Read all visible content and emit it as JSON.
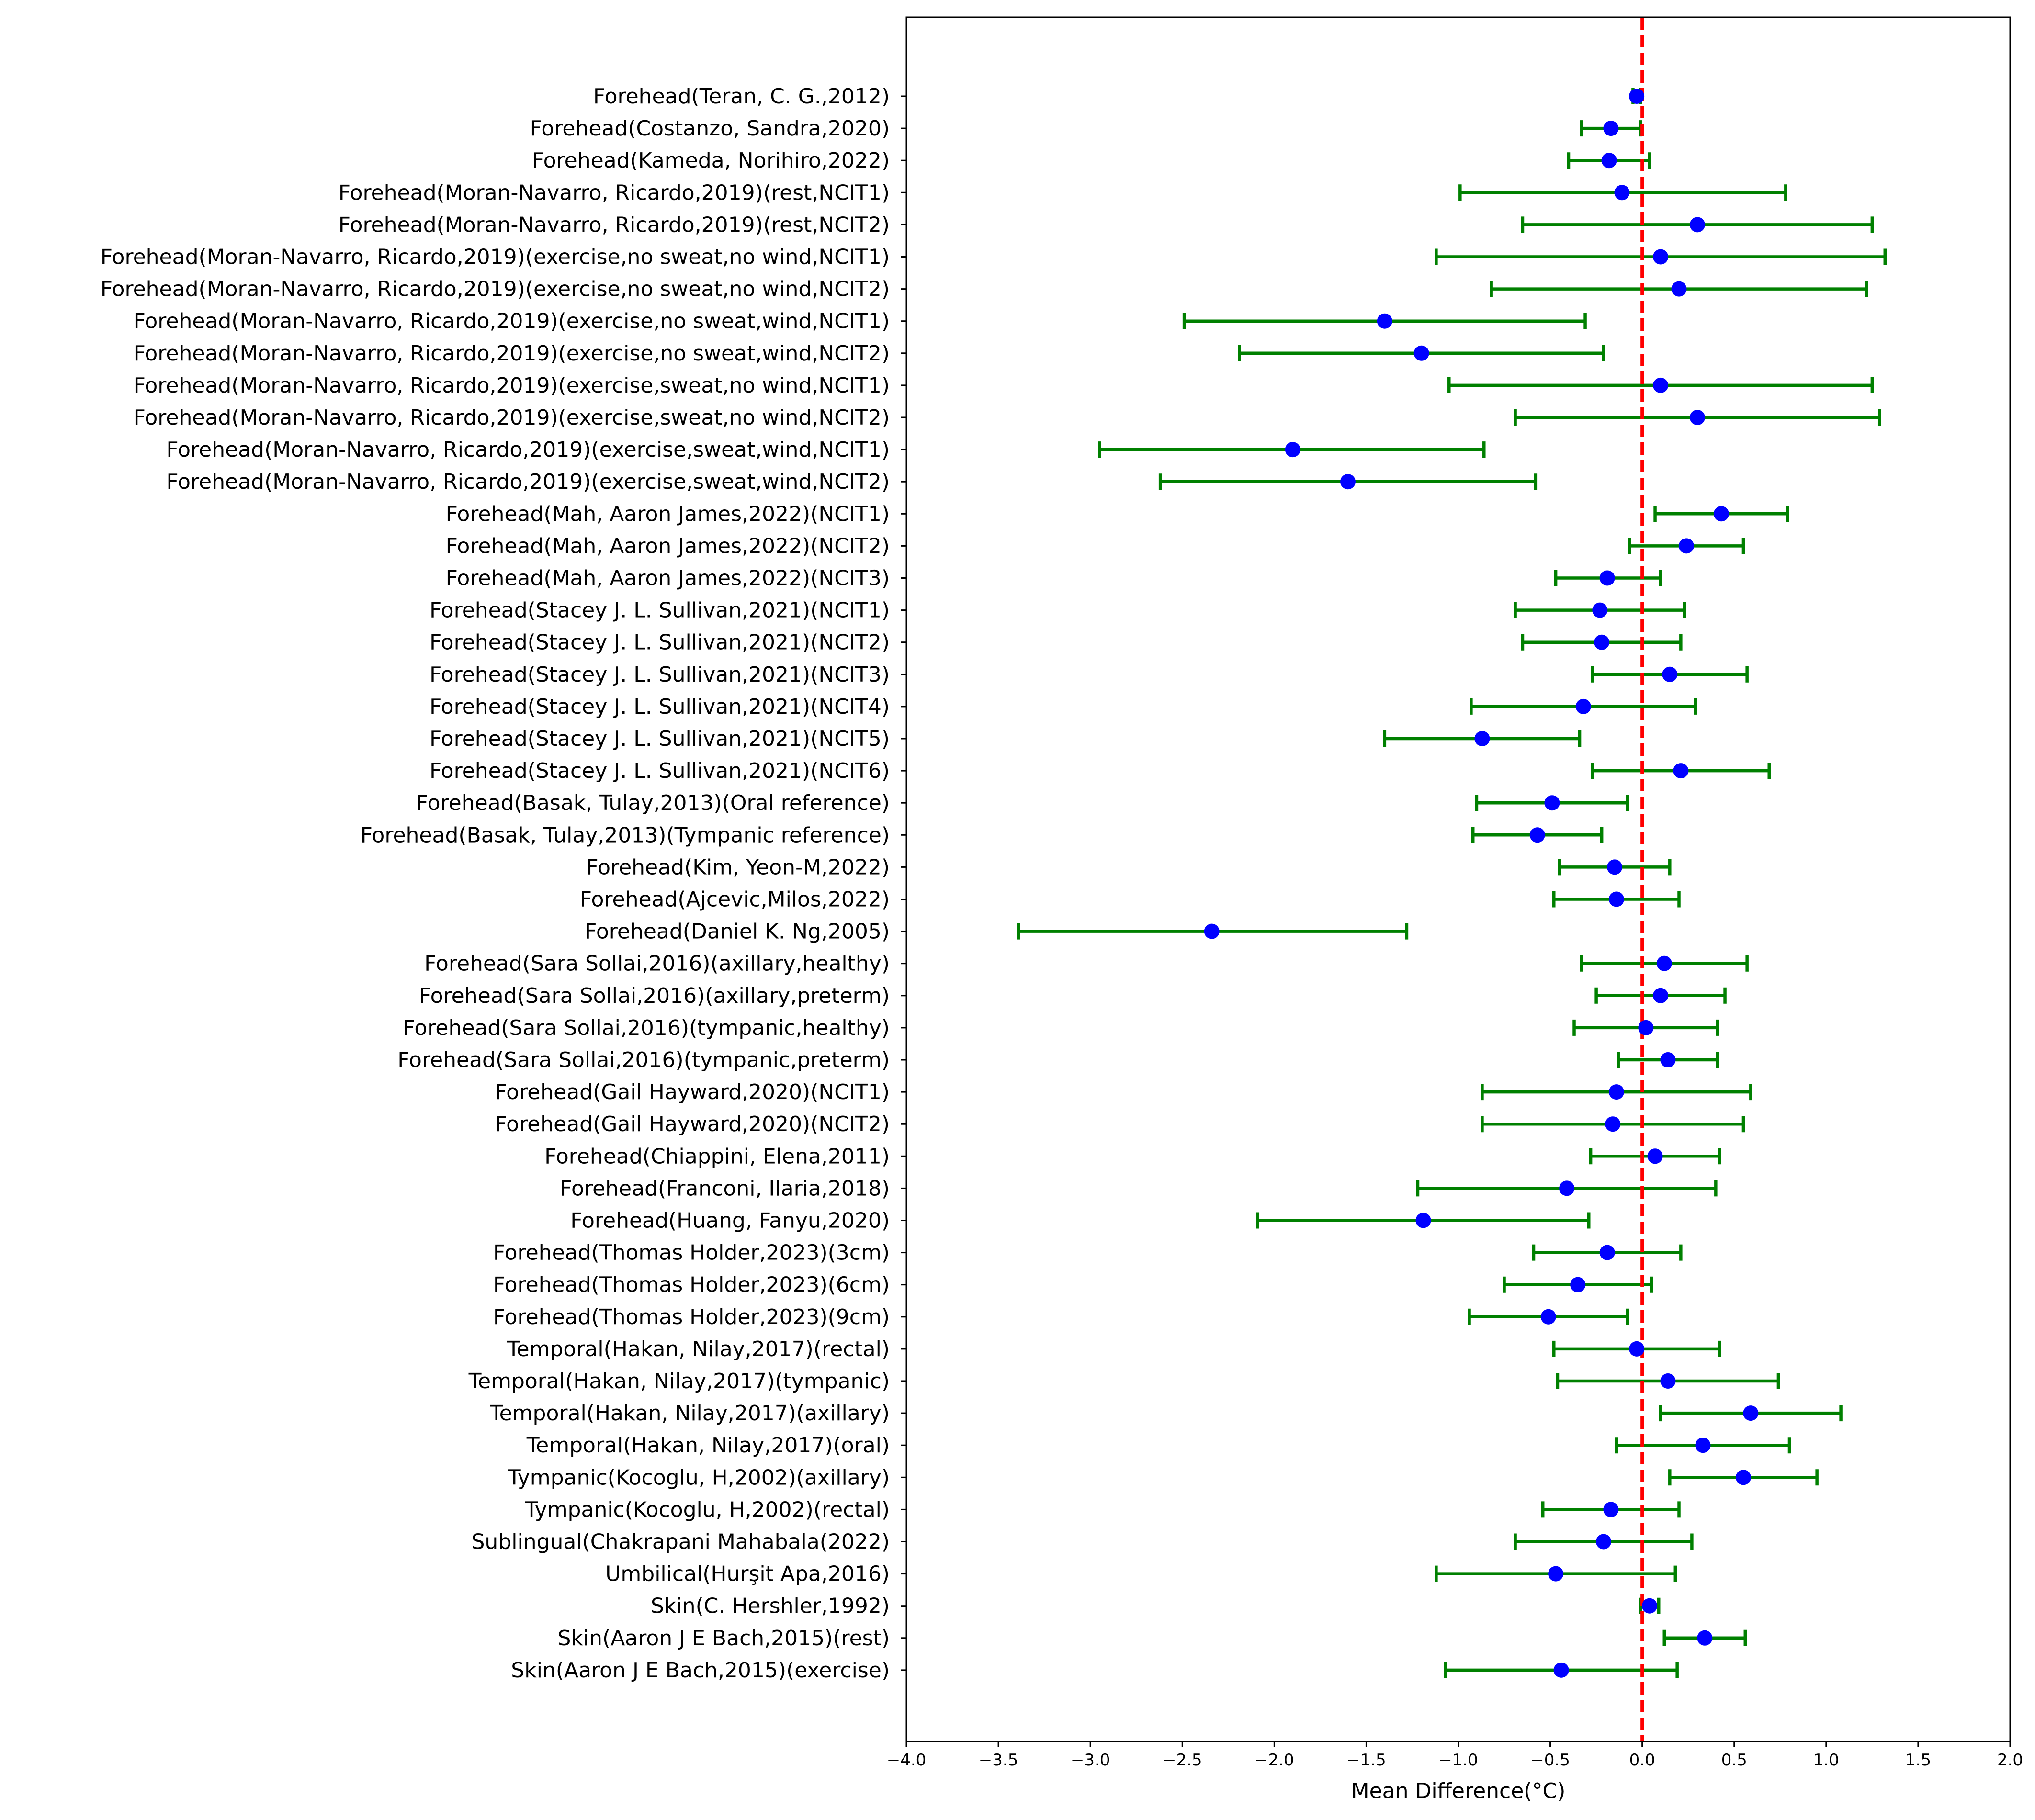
{
  "chart_data": {
    "type": "scatter",
    "subtype": "forest-plot-with-error-bars",
    "title": "",
    "xlabel": "Mean Difference(°C)",
    "ylabel": "",
    "xlim": [
      -4.0,
      2.0
    ],
    "xticks": [
      "−4.0",
      "−3.5",
      "−3.0",
      "−2.5",
      "−2.0",
      "−1.5",
      "−1.0",
      "−0.5",
      "0.0",
      "0.5",
      "1.0",
      "1.5",
      "2.0"
    ],
    "xtick_values": [
      -4.0,
      -3.5,
      -3.0,
      -2.5,
      -2.0,
      -1.5,
      -1.0,
      -0.5,
      0.0,
      0.5,
      1.0,
      1.5,
      2.0
    ],
    "reference_line": {
      "x": 0.0,
      "style": "dashed",
      "color": "#ff0000"
    },
    "colors": {
      "point": "#0000ff",
      "errorbar": "#008000",
      "reference": "#ff0000"
    },
    "grid": false,
    "legend": "none",
    "studies": [
      {
        "label": "Forehead(Teran, C. G.,2012)",
        "mean": -0.03,
        "lo": -0.05,
        "hi": -0.01
      },
      {
        "label": "Forehead(Costanzo, Sandra,2020)",
        "mean": -0.17,
        "lo": -0.33,
        "hi": -0.01
      },
      {
        "label": "Forehead(Kameda, Norihiro,2022)",
        "mean": -0.18,
        "lo": -0.4,
        "hi": 0.04
      },
      {
        "label": "Forehead(Moran-Navarro, Ricardo,2019)(rest,NCIT1)",
        "mean": -0.11,
        "lo": -0.99,
        "hi": 0.78
      },
      {
        "label": "Forehead(Moran-Navarro, Ricardo,2019)(rest,NCIT2)",
        "mean": 0.3,
        "lo": -0.65,
        "hi": 1.25
      },
      {
        "label": "Forehead(Moran-Navarro, Ricardo,2019)(exercise,no sweat,no wind,NCIT1)",
        "mean": 0.1,
        "lo": -1.12,
        "hi": 1.32
      },
      {
        "label": "Forehead(Moran-Navarro, Ricardo,2019)(exercise,no sweat,no wind,NCIT2)",
        "mean": 0.2,
        "lo": -0.82,
        "hi": 1.22
      },
      {
        "label": "Forehead(Moran-Navarro, Ricardo,2019)(exercise,no sweat,wind,NCIT1)",
        "mean": -1.4,
        "lo": -2.49,
        "hi": -0.31
      },
      {
        "label": "Forehead(Moran-Navarro, Ricardo,2019)(exercise,no sweat,wind,NCIT2)",
        "mean": -1.2,
        "lo": -2.19,
        "hi": -0.21
      },
      {
        "label": "Forehead(Moran-Navarro, Ricardo,2019)(exercise,sweat,no wind,NCIT1)",
        "mean": 0.1,
        "lo": -1.05,
        "hi": 1.25
      },
      {
        "label": "Forehead(Moran-Navarro, Ricardo,2019)(exercise,sweat,no wind,NCIT2)",
        "mean": 0.3,
        "lo": -0.69,
        "hi": 1.29
      },
      {
        "label": "Forehead(Moran-Navarro, Ricardo,2019)(exercise,sweat,wind,NCIT1)",
        "mean": -1.9,
        "lo": -2.95,
        "hi": -0.86
      },
      {
        "label": "Forehead(Moran-Navarro, Ricardo,2019)(exercise,sweat,wind,NCIT2)",
        "mean": -1.6,
        "lo": -2.62,
        "hi": -0.58
      },
      {
        "label": "Forehead(Mah, Aaron James,2022)(NCIT1)",
        "mean": 0.43,
        "lo": 0.07,
        "hi": 0.79
      },
      {
        "label": "Forehead(Mah, Aaron James,2022)(NCIT2)",
        "mean": 0.24,
        "lo": -0.07,
        "hi": 0.55
      },
      {
        "label": "Forehead(Mah, Aaron James,2022)(NCIT3)",
        "mean": -0.19,
        "lo": -0.47,
        "hi": 0.1
      },
      {
        "label": "Forehead(Stacey J. L. Sullivan,2021)(NCIT1)",
        "mean": -0.23,
        "lo": -0.69,
        "hi": 0.23
      },
      {
        "label": "Forehead(Stacey J. L. Sullivan,2021)(NCIT2)",
        "mean": -0.22,
        "lo": -0.65,
        "hi": 0.21
      },
      {
        "label": "Forehead(Stacey J. L. Sullivan,2021)(NCIT3)",
        "mean": 0.15,
        "lo": -0.27,
        "hi": 0.57
      },
      {
        "label": "Forehead(Stacey J. L. Sullivan,2021)(NCIT4)",
        "mean": -0.32,
        "lo": -0.93,
        "hi": 0.29
      },
      {
        "label": "Forehead(Stacey J. L. Sullivan,2021)(NCIT5)",
        "mean": -0.87,
        "lo": -1.4,
        "hi": -0.34
      },
      {
        "label": "Forehead(Stacey J. L. Sullivan,2021)(NCIT6)",
        "mean": 0.21,
        "lo": -0.27,
        "hi": 0.69
      },
      {
        "label": "Forehead(Basak, Tulay,2013)(Oral reference)",
        "mean": -0.49,
        "lo": -0.9,
        "hi": -0.08
      },
      {
        "label": "Forehead(Basak, Tulay,2013)(Tympanic reference)",
        "mean": -0.57,
        "lo": -0.92,
        "hi": -0.22
      },
      {
        "label": "Forehead(Kim, Yeon-M,2022)",
        "mean": -0.15,
        "lo": -0.45,
        "hi": 0.15
      },
      {
        "label": "Forehead(Ajcevic,Milos,2022)",
        "mean": -0.14,
        "lo": -0.48,
        "hi": 0.2
      },
      {
        "label": "Forehead(Daniel K. Ng,2005)",
        "mean": -2.34,
        "lo": -3.39,
        "hi": -1.28
      },
      {
        "label": "Forehead(Sara Sollai,2016)(axillary,healthy)",
        "mean": 0.12,
        "lo": -0.33,
        "hi": 0.57
      },
      {
        "label": "Forehead(Sara Sollai,2016)(axillary,preterm)",
        "mean": 0.1,
        "lo": -0.25,
        "hi": 0.45
      },
      {
        "label": "Forehead(Sara Sollai,2016)(tympanic,healthy)",
        "mean": 0.02,
        "lo": -0.37,
        "hi": 0.41
      },
      {
        "label": "Forehead(Sara Sollai,2016)(tympanic,preterm)",
        "mean": 0.14,
        "lo": -0.13,
        "hi": 0.41
      },
      {
        "label": "Forehead(Gail Hayward,2020)(NCIT1)",
        "mean": -0.14,
        "lo": -0.87,
        "hi": 0.59
      },
      {
        "label": "Forehead(Gail Hayward,2020)(NCIT2)",
        "mean": -0.16,
        "lo": -0.87,
        "hi": 0.55
      },
      {
        "label": "Forehead(Chiappini, Elena,2011)",
        "mean": 0.07,
        "lo": -0.28,
        "hi": 0.42
      },
      {
        "label": "Forehead(Franconi, Ilaria,2018)",
        "mean": -0.41,
        "lo": -1.22,
        "hi": 0.4
      },
      {
        "label": "Forehead(Huang, Fanyu,2020)",
        "mean": -1.19,
        "lo": -2.09,
        "hi": -0.29
      },
      {
        "label": "Forehead(Thomas Holder,2023)(3cm)",
        "mean": -0.19,
        "lo": -0.59,
        "hi": 0.21
      },
      {
        "label": "Forehead(Thomas Holder,2023)(6cm)",
        "mean": -0.35,
        "lo": -0.75,
        "hi": 0.05
      },
      {
        "label": "Forehead(Thomas Holder,2023)(9cm)",
        "mean": -0.51,
        "lo": -0.94,
        "hi": -0.08
      },
      {
        "label": "Temporal(Hakan, Nilay,2017)(rectal)",
        "mean": -0.03,
        "lo": -0.48,
        "hi": 0.42
      },
      {
        "label": "Temporal(Hakan, Nilay,2017)(tympanic)",
        "mean": 0.14,
        "lo": -0.46,
        "hi": 0.74
      },
      {
        "label": "Temporal(Hakan, Nilay,2017)(axillary)",
        "mean": 0.59,
        "lo": 0.1,
        "hi": 1.08
      },
      {
        "label": "Temporal(Hakan, Nilay,2017)(oral)",
        "mean": 0.33,
        "lo": -0.14,
        "hi": 0.8
      },
      {
        "label": "Tympanic(Kocoglu, H,2002)(axillary)",
        "mean": 0.55,
        "lo": 0.15,
        "hi": 0.95
      },
      {
        "label": "Tympanic(Kocoglu, H,2002)(rectal)",
        "mean": -0.17,
        "lo": -0.54,
        "hi": 0.2
      },
      {
        "label": "Sublingual(Chakrapani Mahabala(2022)",
        "mean": -0.21,
        "lo": -0.69,
        "hi": 0.27
      },
      {
        "label": "Umbilical(Hurşit Apa,2016)",
        "mean": -0.47,
        "lo": -1.12,
        "hi": 0.18
      },
      {
        "label": "Skin(C. Hershler,1992)",
        "mean": 0.04,
        "lo": -0.01,
        "hi": 0.09
      },
      {
        "label": "Skin(Aaron J E Bach,2015)(rest)",
        "mean": 0.34,
        "lo": 0.12,
        "hi": 0.56
      },
      {
        "label": "Skin(Aaron J E Bach,2015)(exercise)",
        "mean": -0.44,
        "lo": -1.07,
        "hi": 0.19
      }
    ]
  }
}
